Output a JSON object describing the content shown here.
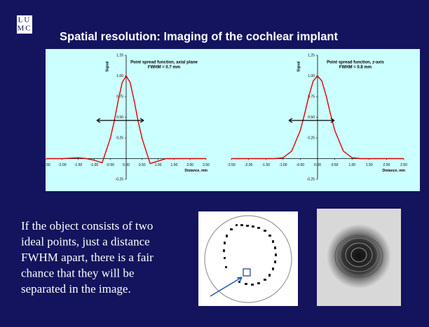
{
  "logo": {
    "top": "LU",
    "bottom": "MC"
  },
  "title": "Spatial resolution: Imaging of the cochlear implant",
  "body_lines": [
    "If the object consists of two",
    "ideal points, just a distance",
    "FWHM apart, there is a fair",
    "chance that they will be",
    "separated in the image."
  ],
  "chart_data": [
    {
      "type": "line",
      "annotation": [
        "Point spread function, axial plane",
        "FWHM = 0.7 mm"
      ],
      "y_label": "Signal",
      "x_label": "Distance, mm",
      "color": "#e00000",
      "x": [
        -2.5,
        -2,
        -1.5,
        -1.25,
        -1,
        -0.75,
        -0.5,
        -0.375,
        -0.25,
        -0.125,
        0,
        0.125,
        0.25,
        0.375,
        0.5,
        0.75,
        1,
        1.25,
        1.5,
        2,
        2.5
      ],
      "values": [
        0,
        0,
        0.01,
        0,
        -0.02,
        -0.05,
        0.24,
        0.45,
        0.7,
        0.92,
        1.0,
        0.92,
        0.7,
        0.45,
        0.24,
        -0.06,
        -0.03,
        0,
        0,
        0,
        0
      ],
      "xlim": [
        -2.5,
        2.5
      ],
      "ylim": [
        -0.25,
        1.25
      ],
      "xticks": [
        {
          "value": -2.5,
          "label": "-2.50"
        },
        {
          "value": -2,
          "label": "-2.00"
        },
        {
          "value": -1.5,
          "label": "-1.50"
        },
        {
          "value": -1,
          "label": "-1.00"
        },
        {
          "value": -0.5,
          "label": "-0.50"
        },
        {
          "value": 0,
          "label": "0.00"
        },
        {
          "value": 0.5,
          "label": "0.50"
        },
        {
          "value": 1,
          "label": "1.00"
        },
        {
          "value": 1.5,
          "label": "1.50"
        },
        {
          "value": 2,
          "label": "2.00"
        },
        {
          "value": 2.5,
          "label": "2.50"
        }
      ],
      "yticks": [
        -0.25,
        {
          "value": 0.5,
          "label": "0.50"
        },
        0.25,
        0.75,
        {
          "value": 1,
          "label": "1.00"
        },
        1.25
      ],
      "grid": false
    },
    {
      "type": "line",
      "annotation": [
        "Point spread function, z-axis",
        "FWHM = 0.8 mm"
      ],
      "y_label": "Signal",
      "x_label": "Distance, mm",
      "color": "#e00000",
      "x": [
        -2.5,
        -2,
        -1.5,
        -1.25,
        -1,
        -0.75,
        -0.5,
        -0.375,
        -0.25,
        -0.125,
        0,
        0.125,
        0.25,
        0.375,
        0.5,
        0.75,
        1,
        1.25,
        1.5,
        2,
        2.5
      ],
      "values": [
        0,
        0,
        0,
        0,
        0.01,
        0.09,
        0.34,
        0.54,
        0.76,
        0.94,
        1.0,
        0.94,
        0.76,
        0.54,
        0.34,
        0.09,
        0.01,
        0,
        0,
        0,
        0
      ],
      "xlim": [
        -2.5,
        2.5
      ],
      "ylim": [
        -0.25,
        1.25
      ],
      "xticks": [
        {
          "value": -2.5,
          "label": "-2.50"
        },
        {
          "value": -2,
          "label": "-2.00"
        },
        {
          "value": -1.5,
          "label": "-1.50"
        },
        {
          "value": -1,
          "label": "-1.00"
        },
        {
          "value": -0.5,
          "label": "-0.50"
        },
        {
          "value": 0,
          "label": "0.00"
        },
        {
          "value": 0.5,
          "label": "0.50"
        },
        {
          "value": 1,
          "label": "1.00"
        },
        {
          "value": 1.5,
          "label": "1.50"
        },
        {
          "value": 2,
          "label": "2.00"
        },
        {
          "value": 2.5,
          "label": "2.50"
        }
      ],
      "yticks": [
        -0.25,
        {
          "value": 0.5,
          "label": "0.50"
        },
        0.25,
        0.75,
        {
          "value": 1,
          "label": "1.00"
        },
        1.25
      ],
      "grid": false
    }
  ]
}
